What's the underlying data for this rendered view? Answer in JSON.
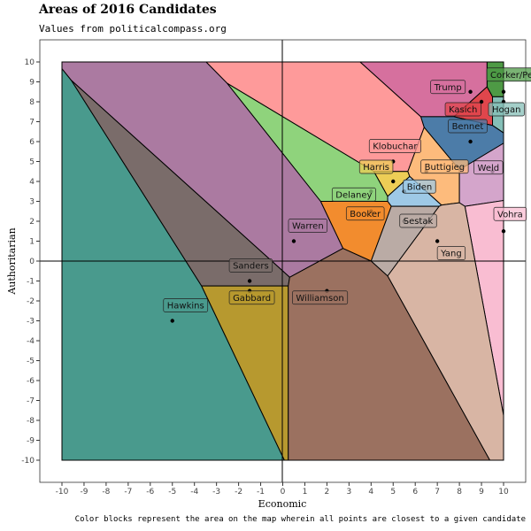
{
  "title": "Areas of 2016 Candidates",
  "subtitle": "Values from politicalcompass.org",
  "caption": "Color blocks represent the area on the map wherein all points are closest to a given candidate",
  "chart_data": {
    "type": "scatter",
    "xlabel": "Economic",
    "ylabel": "Authoritarian",
    "xlim": [
      -10,
      10
    ],
    "ylim": [
      -10,
      10
    ],
    "xticks": [
      -10,
      -9,
      -8,
      -7,
      -6,
      -5,
      -4,
      -3,
      -2,
      -1,
      0,
      1,
      2,
      3,
      4,
      5,
      6,
      7,
      8,
      9,
      10
    ],
    "yticks": [
      -10,
      -9,
      -8,
      -7,
      -6,
      -5,
      -4,
      -3,
      -2,
      -1,
      0,
      1,
      2,
      3,
      4,
      5,
      6,
      7,
      8,
      9,
      10
    ],
    "grid": false,
    "points": [
      {
        "name": "Corker/Pence",
        "x": 10,
        "y": 8.5,
        "color": "#4e9a45"
      },
      {
        "name": "Trump",
        "x": 8.5,
        "y": 8.5,
        "color": "#d6709e"
      },
      {
        "name": "Kasich",
        "x": 9,
        "y": 8,
        "color": "#e0464c"
      },
      {
        "name": "Hogan",
        "x": 10,
        "y": 8,
        "color": "#85bfb7"
      },
      {
        "name": "Bennet",
        "x": 8.5,
        "y": 6,
        "color": "#4c7ca8"
      },
      {
        "name": "Klobuchar",
        "x": 5,
        "y": 5,
        "color": "#fe9a9a"
      },
      {
        "name": "Harris",
        "x": 5,
        "y": 4,
        "color": "#edcd56"
      },
      {
        "name": "Buttigieg",
        "x": 6.5,
        "y": 4.5,
        "color": "#fdbb7c"
      },
      {
        "name": "Weld",
        "x": 9.5,
        "y": 4.5,
        "color": "#d4a5cb"
      },
      {
        "name": "Delaney",
        "x": 4,
        "y": 3.5,
        "color": "#8fd37c"
      },
      {
        "name": "Biden",
        "x": 5.5,
        "y": 3.5,
        "color": "#9ec9e6"
      },
      {
        "name": "Booker",
        "x": 4,
        "y": 2.5,
        "color": "#f28c2e"
      },
      {
        "name": "Vohra",
        "x": 10,
        "y": 1.5,
        "color": "#f9bdd2"
      },
      {
        "name": "Sestak",
        "x": 5.5,
        "y": 2,
        "color": "#baaba5"
      },
      {
        "name": "Yang",
        "x": 7,
        "y": 1,
        "color": "#d8b5a4"
      },
      {
        "name": "Warren",
        "x": 0.5,
        "y": 1,
        "color": "#ab7aa1"
      },
      {
        "name": "Sanders",
        "x": -1.5,
        "y": -1,
        "color": "#7a6c6a"
      },
      {
        "name": "Gabbard",
        "x": -1.5,
        "y": -1.5,
        "color": "#b7992f"
      },
      {
        "name": "Williamson",
        "x": 2,
        "y": -1.5,
        "color": "#9b7160"
      },
      {
        "name": "Hawkins",
        "x": -5,
        "y": -3,
        "color": "#499a8d"
      }
    ]
  }
}
